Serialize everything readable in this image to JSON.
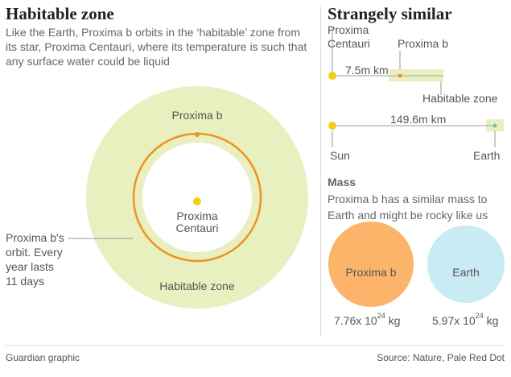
{
  "left": {
    "title": "Habitable zone",
    "intro": "Like the Earth, Proxima b orbits in the ‘habitable’ zone from its star, Proxima Centauri, where its temperature is such that any surface water could be liquid",
    "planet_label": "Proxima b",
    "star_label_line1": "Proxima",
    "star_label_line2": "Centauri",
    "zone_label": "Habitable zone",
    "orbit_note": [
      "Proxima b's",
      "orbit. Every",
      "year lasts",
      "11 days"
    ]
  },
  "right": {
    "title": "Strangely similar",
    "star_label_line1": "Proxima",
    "star_label_line2": "Centauri",
    "planet_label": "Proxima b",
    "proxima_distance": "7.5m km",
    "zone_label": "Habitable zone",
    "earth_distance": "149.6m km",
    "sun_label": "Sun",
    "earth_label": "Earth",
    "mass_heading": "Mass",
    "mass_text": "Proxima b has a similar mass to Earth and might be rocky like us",
    "proxima_mass_label": "Proxima b",
    "earth_mass_label": "Earth",
    "proxima_mass_base": "7.76x 10",
    "proxima_mass_exp": "24",
    "proxima_mass_unit": " kg",
    "earth_mass_base": "5.97x 10",
    "earth_mass_exp": "24",
    "earth_mass_unit": " kg"
  },
  "footer": {
    "credit": "Guardian graphic",
    "source": "Source: Nature, Pale Red Dot"
  },
  "colors": {
    "zone": "#e8f0bf",
    "orbit": "#f0921e",
    "star": "#f3cf11",
    "earth_dot": "#7dbb9e",
    "proxima_circle": "#fbb46a",
    "earth_circle": "#c9ebf3"
  }
}
